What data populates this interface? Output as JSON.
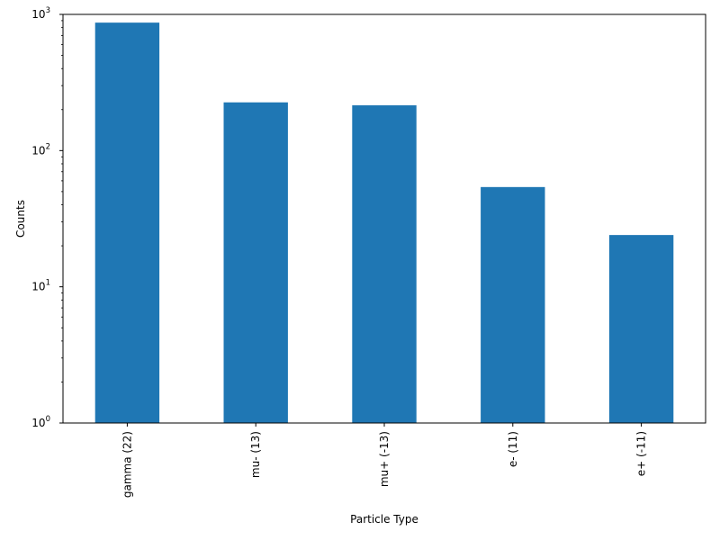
{
  "chart_data": {
    "type": "bar",
    "categories": [
      "gamma (22)",
      "mu- (13)",
      "mu+ (-13)",
      "e- (11)",
      "e+ (-11)"
    ],
    "values": [
      870,
      226,
      215,
      54,
      24
    ],
    "xlabel": "Particle Type",
    "ylabel": "Counts",
    "yscale": "log",
    "ylim": [
      1,
      1000
    ],
    "yticks": [
      {
        "value": 1,
        "base": "10",
        "exp": "0"
      },
      {
        "value": 10,
        "base": "10",
        "exp": "1"
      },
      {
        "value": 100,
        "base": "10",
        "exp": "2"
      },
      {
        "value": 1000,
        "base": "10",
        "exp": "3"
      }
    ],
    "grid": false,
    "legend": "none",
    "bar_color": "#1f77b4"
  }
}
